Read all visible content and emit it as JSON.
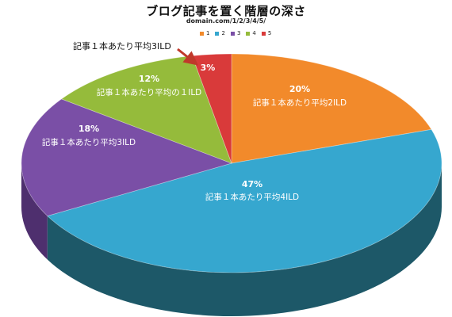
{
  "chart_data": {
    "type": "pie",
    "title": "ブログ記事を置く階層の深さ",
    "subtitle": "domain.com/1/2/3/4/5/",
    "legend": {
      "placement": "top",
      "entries": [
        "1",
        "2",
        "3",
        "4",
        "5"
      ]
    },
    "slices": [
      {
        "legend": "1",
        "value": 20,
        "percent_label": "20%",
        "label": "記事１本あたり平均2ILD",
        "color": "#f28a2b",
        "side_color": "#b8621a"
      },
      {
        "legend": "2",
        "value": 47,
        "percent_label": "47%",
        "label": "記事１本あたり平均4ILD",
        "color": "#36a7cf",
        "side_color": "#1d5868"
      },
      {
        "legend": "3",
        "value": 18,
        "percent_label": "18%",
        "label": "記事１本あたり平均3ILD",
        "color": "#7a4fa6",
        "side_color": "#4e2f6e"
      },
      {
        "legend": "4",
        "value": 12,
        "percent_label": "12%",
        "label": "記事１本あたり平均の１ILD",
        "color": "#95bb3b",
        "side_color": "#5e7a22"
      },
      {
        "legend": "5",
        "value": 3,
        "percent_label": "3%",
        "label": "記事１本あたり平均3ILD",
        "color": "#d93a3a",
        "side_color": "#8e2020"
      }
    ],
    "callout": {
      "text": "記事１本あたり平均3ILD",
      "arrow_color": "#c0392b"
    }
  }
}
